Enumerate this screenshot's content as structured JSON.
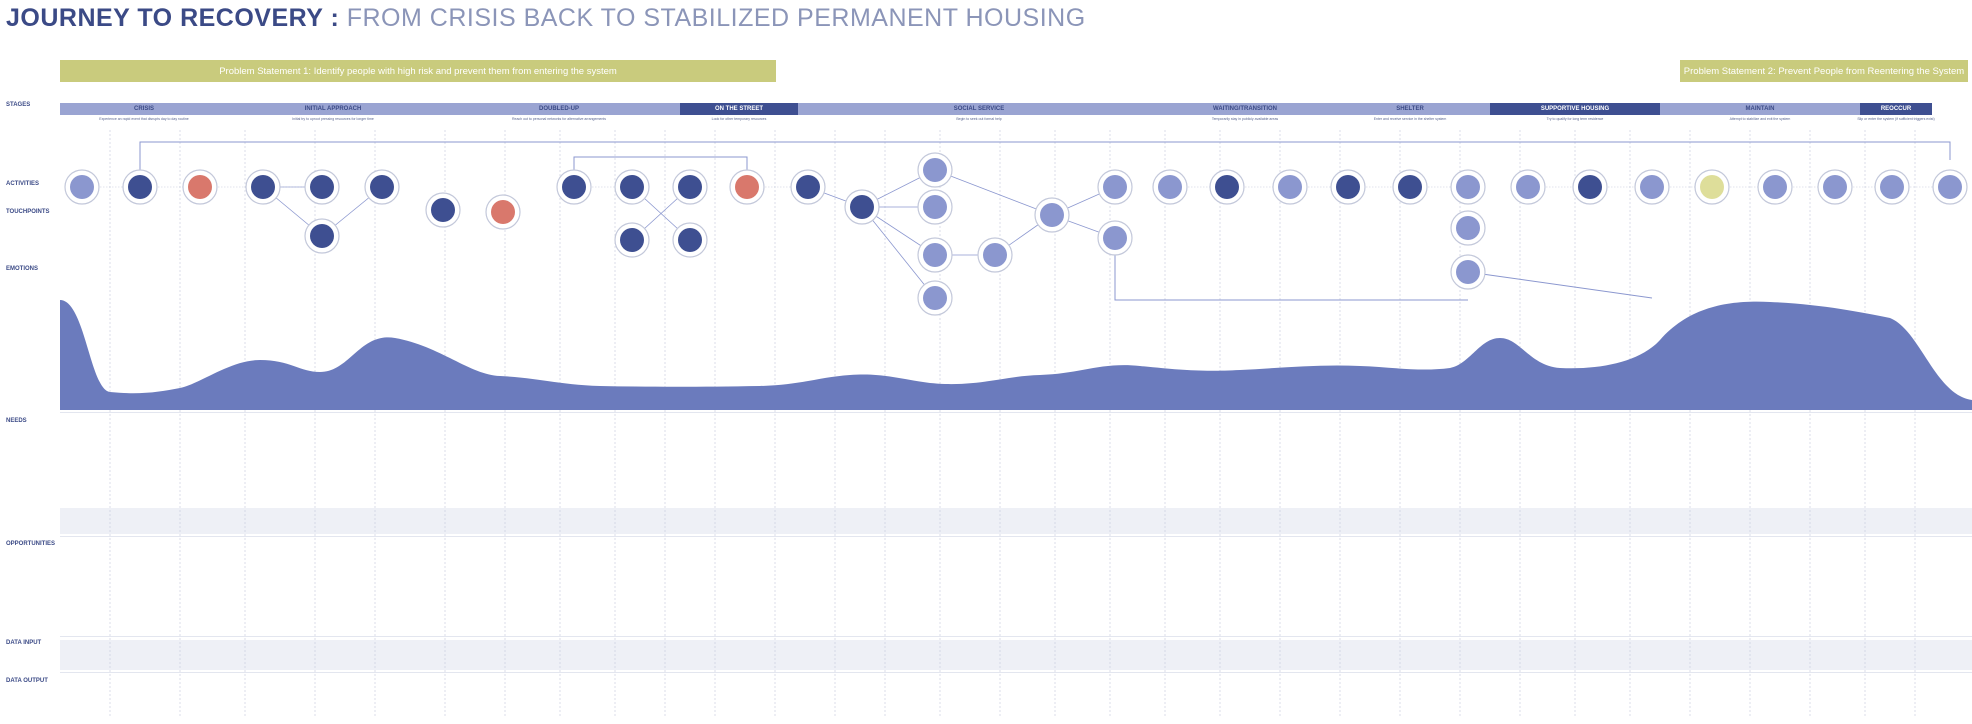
{
  "title": {
    "bold": "JOURNEY TO RECOVERY :",
    "rest": "FROM CRISIS BACK TO STABILIZED PERMANENT HOUSING"
  },
  "problem_statements": [
    "Problem Statement 1: Identify people with high risk and prevent them from entering the system",
    "Problem Statement 2: Prevent People from Reentering the System"
  ],
  "row_labels": {
    "stages": "STAGES",
    "activities": "ACTIVITIES",
    "touchpoints": "TOUCHPOINTS",
    "emotions": "EMOTIONS",
    "needs": "NEEDS",
    "opportunities": "OPPORTUNITIES",
    "data_input": "DATA INPUT",
    "data_output": "DATA OUTPUT"
  },
  "stages": [
    {
      "label": "CRISIS",
      "goal": "Experience an rapid event that disrupts day to day routine",
      "shade": "light"
    },
    {
      "label": "INITIAL APPROACH",
      "goal": "Initial try to uproot pressing resources for longer time",
      "shade": "light"
    },
    {
      "label": "DOUBLED-UP",
      "goal": "Reach out to personal networks for alternative arrangements",
      "shade": "light"
    },
    {
      "label": "ON THE STREET",
      "goal": "Look for other temporary resources",
      "shade": "dark"
    },
    {
      "label": "SOCIAL SERVICE",
      "goal": "Begin to seek out formal help",
      "shade": "light"
    },
    {
      "label": "WAITING/TRANSITION",
      "goal": "Temporarily stay in publicly available areas",
      "shade": "light"
    },
    {
      "label": "SHELTER",
      "goal": "Enter and receive service in the shelter system",
      "shade": "light"
    },
    {
      "label": "SUPPORTIVE HOUSING",
      "goal": "Try to qualify for long term residence",
      "shade": "dark"
    },
    {
      "label": "MAINTAIN",
      "goal": "Attempt to stabilize and exit the system",
      "shade": "light"
    },
    {
      "label": "REOCCUR",
      "goal": "Slip or enter the system (if sufficient triggers exist)",
      "shade": "dark"
    }
  ],
  "colors": {
    "accent": "#3e4f91",
    "light": "#9aa4d2",
    "highlight": "#d9786c",
    "yellow": "#c9cb7d",
    "curve": "#6b7bbd"
  }
}
